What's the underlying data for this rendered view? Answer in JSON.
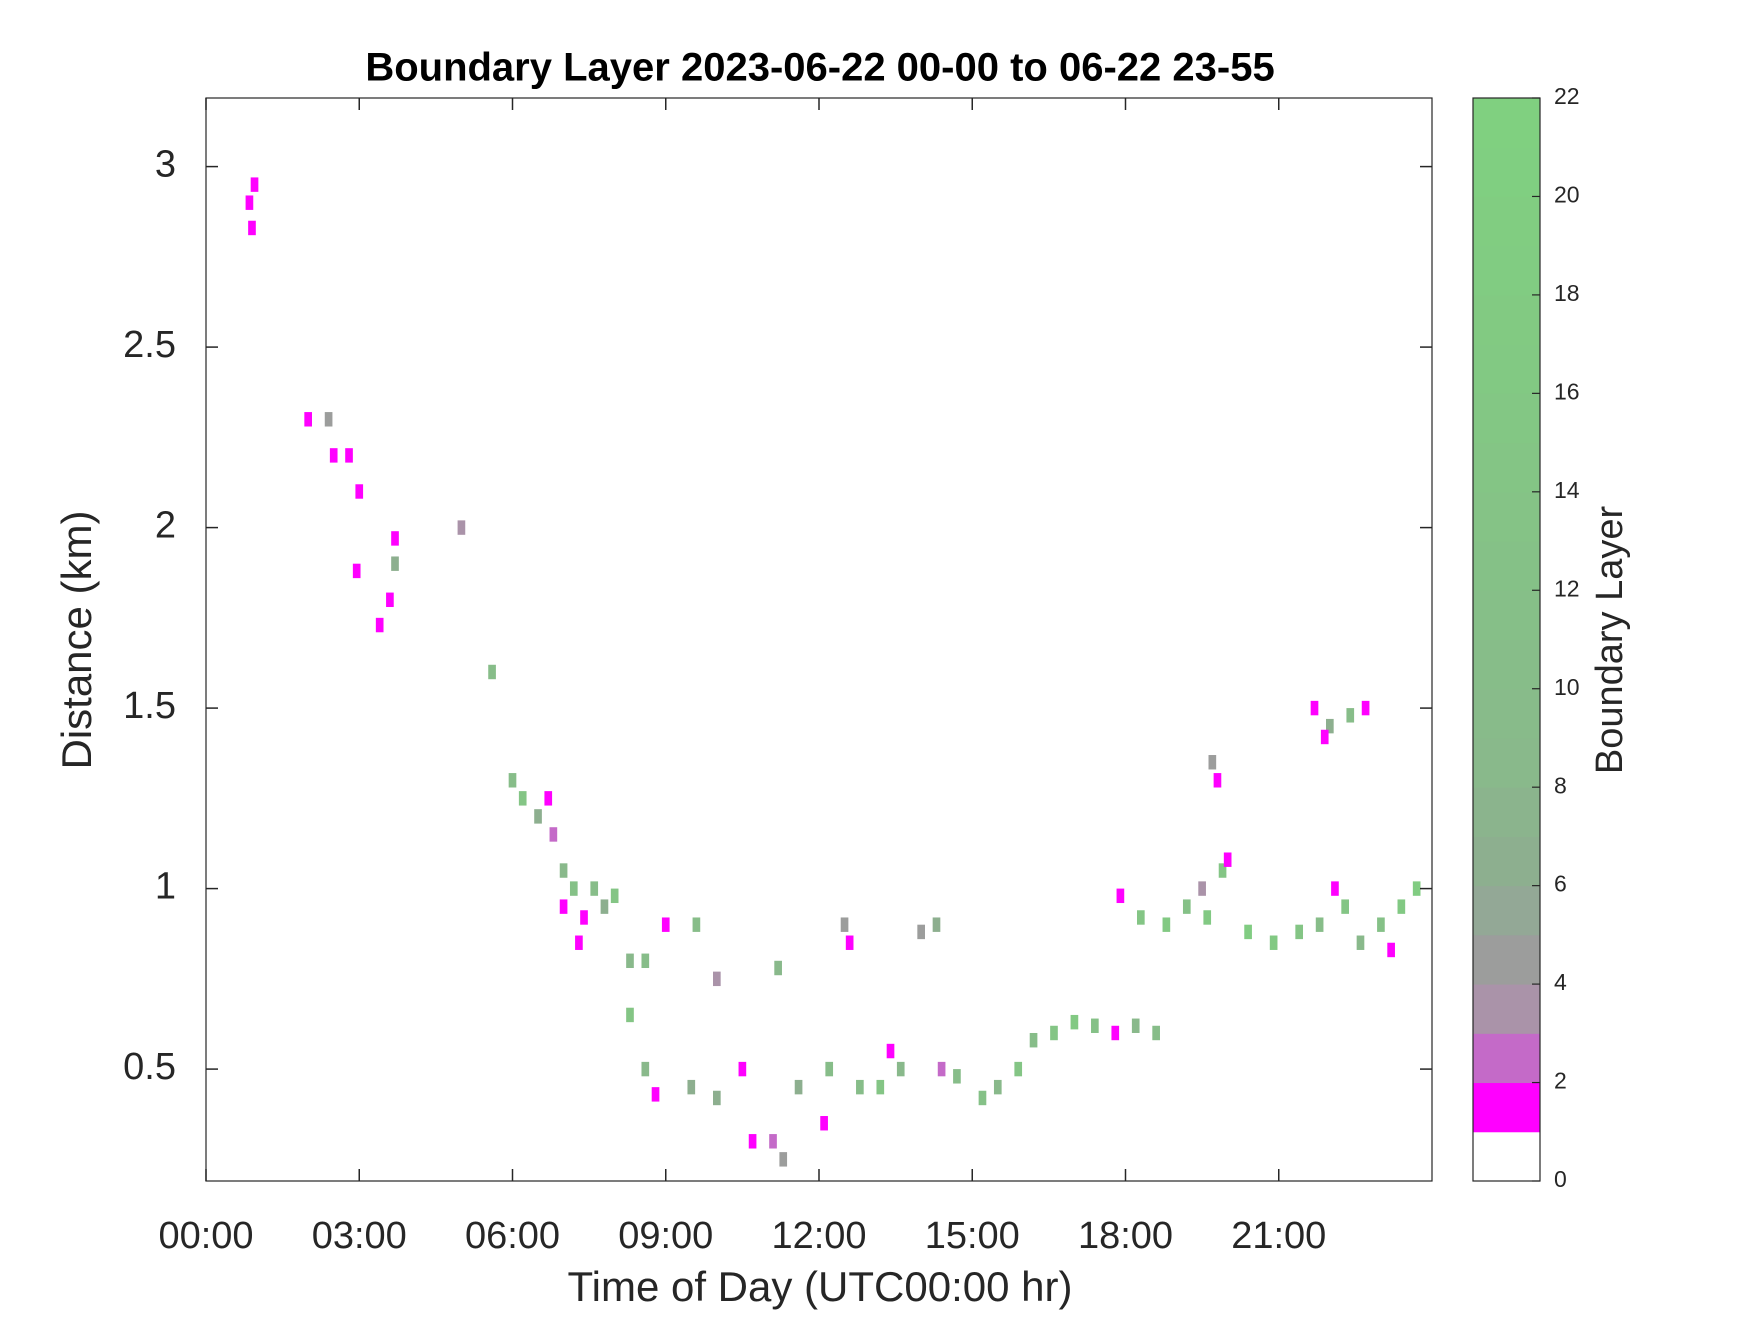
{
  "chart_data": {
    "type": "heatmap",
    "title": "Boundary Layer 2023-06-22 00-00 to 06-22 23-55",
    "xlabel": "Time of Day (UTC00:00 hr)",
    "ylabel": "Distance (km)",
    "colorbar_label": "Boundary Layer",
    "xlim": [
      0,
      24
    ],
    "xticks": [
      {
        "value": 0,
        "label": "00:00"
      },
      {
        "value": 3,
        "label": "03:00"
      },
      {
        "value": 6,
        "label": "06:00"
      },
      {
        "value": 9,
        "label": "09:00"
      },
      {
        "value": 12,
        "label": "12:00"
      },
      {
        "value": 15,
        "label": "15:00"
      },
      {
        "value": 18,
        "label": "18:00"
      },
      {
        "value": 21,
        "label": "21:00"
      }
    ],
    "ylim": [
      0.19,
      3.19
    ],
    "yticks": [
      0.5,
      1,
      1.5,
      2,
      2.5,
      3
    ],
    "clim": [
      0,
      22
    ],
    "cticks": [
      0,
      2,
      4,
      6,
      8,
      10,
      12,
      14,
      16,
      18,
      20,
      22
    ],
    "colormap": [
      "#ffffff",
      "#ff00ff",
      "#c46ac8",
      "#aa93a9",
      "#9c9d9c",
      "#93a896",
      "#8daf8f",
      "#8bb48d",
      "#89b98b",
      "#88bb8a",
      "#87bd89",
      "#86bf88",
      "#85c187",
      "#85c386",
      "#84c585",
      "#83c784",
      "#82c983",
      "#82ca82",
      "#81cc82",
      "#81cd81",
      "#80cf81",
      "#80d080"
    ],
    "x": [
      0.85,
      0.95,
      0.9,
      2.0,
      2.4,
      2.5,
      2.8,
      3.0,
      2.95,
      3.7,
      3.7,
      3.6,
      3.4,
      5.0,
      5.6,
      6.0,
      6.2,
      6.5,
      6.8,
      6.7,
      7.0,
      7.2,
      7.0,
      7.4,
      7.6,
      7.8,
      8.0,
      7.3,
      8.3,
      8.6,
      9.0,
      9.6,
      10.0,
      8.3,
      8.6,
      8.8,
      9.5,
      10.0,
      10.5,
      10.7,
      11.1,
      11.3,
      11.6,
      12.2,
      12.1,
      12.8,
      13.2,
      13.6,
      13.4,
      14.4,
      14.7,
      15.2,
      15.5,
      15.9,
      12.5,
      12.6,
      14.0,
      14.3,
      11.2,
      16.2,
      16.6,
      17.0,
      17.4,
      17.8,
      18.2,
      18.6,
      17.9,
      18.3,
      18.8,
      19.2,
      19.6,
      19.9,
      20.0,
      19.5,
      20.4,
      20.9,
      21.4,
      21.8,
      22.3,
      22.6,
      23.0,
      23.4,
      23.7,
      23.2,
      22.1,
      19.7,
      19.8,
      22.4,
      22.7,
      22.0,
      21.7,
      21.9
    ],
    "y": [
      2.9,
      2.95,
      2.83,
      2.3,
      2.3,
      2.2,
      2.2,
      2.1,
      1.88,
      1.97,
      1.9,
      1.8,
      1.73,
      2.0,
      1.6,
      1.3,
      1.25,
      1.2,
      1.15,
      1.25,
      1.05,
      1.0,
      0.95,
      0.92,
      1.0,
      0.95,
      0.98,
      0.85,
      0.8,
      0.8,
      0.9,
      0.9,
      0.75,
      0.65,
      0.5,
      0.43,
      0.45,
      0.42,
      0.5,
      0.3,
      0.3,
      0.25,
      0.45,
      0.5,
      0.35,
      0.45,
      0.45,
      0.5,
      0.55,
      0.5,
      0.48,
      0.42,
      0.45,
      0.5,
      0.9,
      0.85,
      0.88,
      0.9,
      0.78,
      0.58,
      0.6,
      0.63,
      0.62,
      0.6,
      0.62,
      0.6,
      0.98,
      0.92,
      0.9,
      0.95,
      0.92,
      1.05,
      1.08,
      1.0,
      0.88,
      0.85,
      0.88,
      0.9,
      0.95,
      0.85,
      0.9,
      0.95,
      1.0,
      0.83,
      1.0,
      1.35,
      1.3,
      1.48,
      1.5,
      1.45,
      1.5,
      1.42
    ],
    "values": [
      1,
      1,
      1,
      1,
      4,
      1,
      1,
      1,
      1,
      1,
      6,
      1,
      1,
      3,
      10,
      10,
      14,
      6,
      2,
      1,
      8,
      12,
      1,
      1,
      10,
      6,
      14,
      1,
      8,
      10,
      1,
      10,
      3,
      14,
      8,
      1,
      6,
      6,
      1,
      1,
      2,
      4,
      6,
      10,
      1,
      10,
      14,
      8,
      1,
      2,
      10,
      12,
      8,
      14,
      4,
      1,
      4,
      6,
      8,
      10,
      14,
      16,
      12,
      1,
      8,
      10,
      1,
      14,
      16,
      12,
      16,
      14,
      1,
      3,
      18,
      16,
      14,
      10,
      14,
      8,
      12,
      16,
      18,
      1,
      1,
      4,
      1,
      10,
      1,
      6,
      1,
      1
    ]
  }
}
